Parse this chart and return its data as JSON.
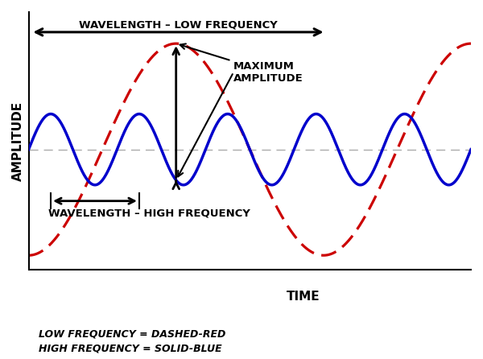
{
  "figsize": [
    6.0,
    4.46
  ],
  "dpi": 100,
  "bg_color": "#ffffff",
  "plot_bg_color": "#ffffff",
  "x_min": 0,
  "x_max": 10,
  "y_min": -2.1,
  "y_max": 2.4,
  "low_freq_amplitude": 1.85,
  "low_freq_cycles": 1.5,
  "low_freq_phase": -1.5707963,
  "high_freq_amplitude": 0.62,
  "high_freq_cycles": 5.0,
  "high_freq_phase": 0.0,
  "low_freq_color": "#cc0000",
  "high_freq_color": "#0000cc",
  "low_freq_linewidth": 2.3,
  "high_freq_linewidth": 2.5,
  "centerline_color": "#aaaaaa",
  "centerline_linewidth": 1.0,
  "ylabel": "AMPLITUDE",
  "xlabel": "TIME",
  "label_fontsize": 11,
  "label_fontweight": "bold",
  "legend_text_1": "LOW FREQUENCY = DASHED-RED",
  "legend_text_2": "HIGH FREQUENCY = SOLID-BLUE",
  "legend_fontsize": 9,
  "wavelength_low_label": "WAVELENGTH – LOW FREQUENCY",
  "wavelength_high_label": "WAVELENGTH – HIGH FREQUENCY",
  "amplitude_label_line1": "MAXIMUM",
  "amplitude_label_line2": "AMPLITUDE",
  "annotation_fontsize": 9.5,
  "annotation_fontweight": "bold"
}
